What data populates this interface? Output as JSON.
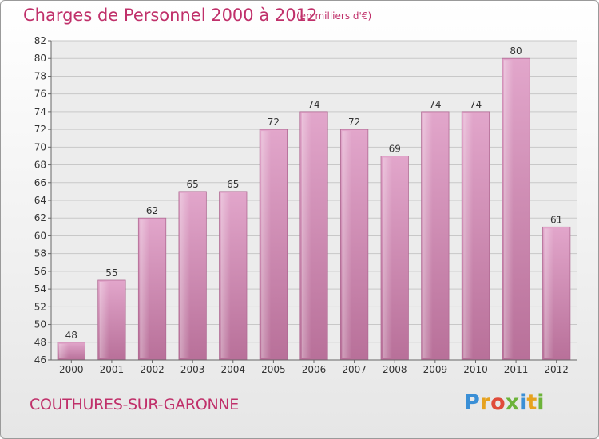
{
  "header": {
    "title": "Charges de Personnel 2000 à 2012",
    "unit": "(en milliers d'€)"
  },
  "footer": {
    "commune": "COUTHURES-SUR-GARONNE",
    "logo": {
      "letters": [
        "P",
        "r",
        "o",
        "x",
        "i",
        "t",
        "i"
      ],
      "colors": [
        "#3a8fd6",
        "#e6a21f",
        "#e04b3a",
        "#6cb33a",
        "#3a8fd6",
        "#e6a21f",
        "#6cb33a"
      ]
    }
  },
  "chart_data": {
    "type": "bar",
    "categories": [
      "2000",
      "2001",
      "2002",
      "2003",
      "2004",
      "2005",
      "2006",
      "2007",
      "2008",
      "2009",
      "2010",
      "2011",
      "2012"
    ],
    "values": [
      48,
      55,
      62,
      65,
      65,
      72,
      74,
      72,
      69,
      74,
      74,
      80,
      61
    ],
    "ylim": [
      46,
      82
    ],
    "yticks": [
      46,
      48,
      50,
      52,
      54,
      56,
      58,
      60,
      62,
      64,
      66,
      68,
      70,
      72,
      74,
      76,
      78,
      80,
      82
    ],
    "grid": true,
    "bar_color": "#d48cb8",
    "text_color": "#c0306a"
  }
}
